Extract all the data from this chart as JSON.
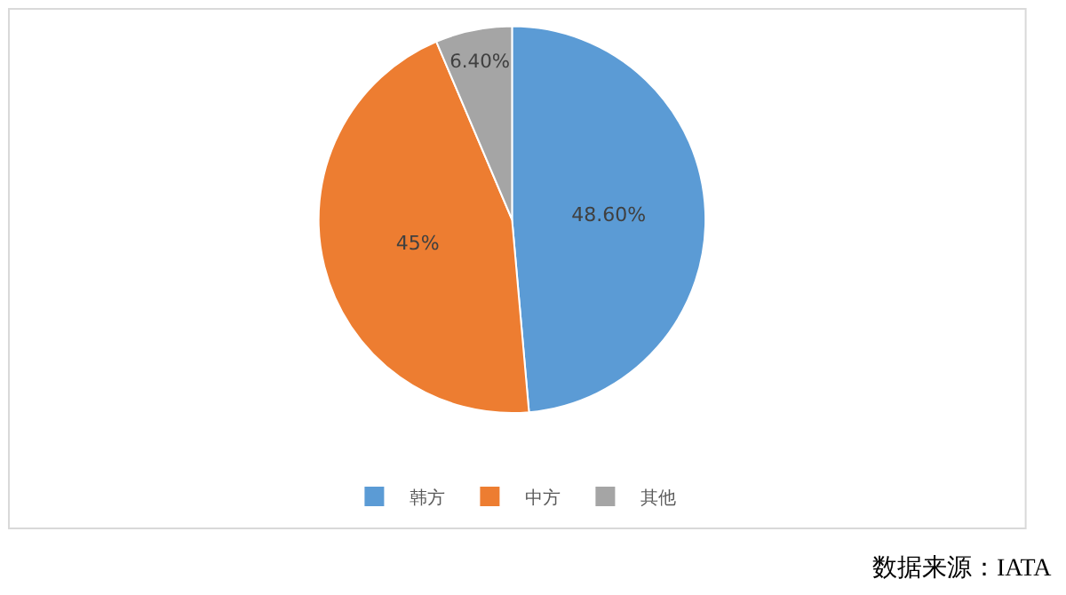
{
  "chart_data": {
    "type": "pie",
    "categories": [
      "韩方",
      "中方",
      "其他"
    ],
    "values": [
      48.6,
      45,
      6.4
    ],
    "value_labels": [
      "48.60%",
      "45%",
      "6.40%"
    ],
    "colors": [
      "#5b9bd5",
      "#ed7d31",
      "#a5a5a5"
    ],
    "legend": "bottom",
    "annotations": [
      "数据来源：IATA"
    ]
  }
}
